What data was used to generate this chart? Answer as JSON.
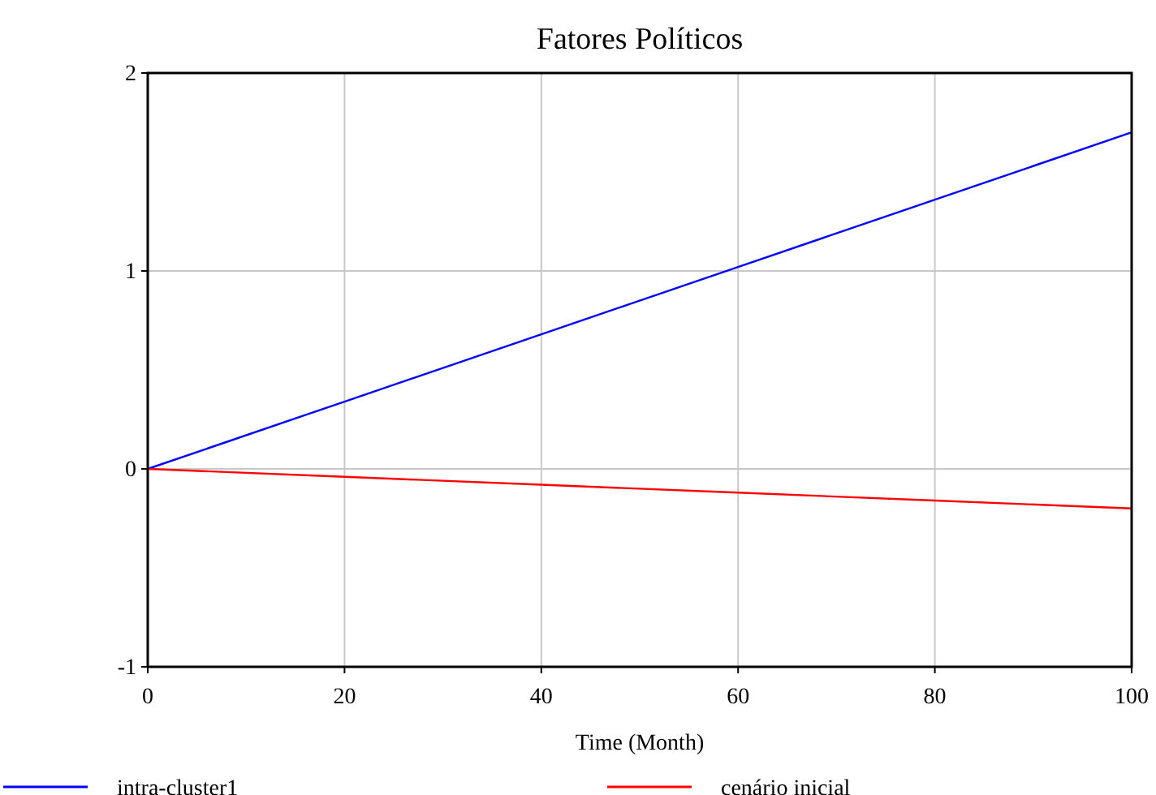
{
  "chart_data": {
    "type": "line",
    "title": "Fatores Políticos",
    "xlabel": "Time (Month)",
    "x": [
      0,
      20,
      40,
      60,
      80,
      100
    ],
    "series": [
      {
        "name": "intra-cluster1",
        "color": "#0000ff",
        "values": [
          0,
          0.34,
          0.68,
          1.02,
          1.36,
          1.7
        ]
      },
      {
        "name": "cenário inicial",
        "color": "#ff0000",
        "values": [
          0,
          -0.04,
          -0.08,
          -0.12,
          -0.16,
          -0.2
        ]
      }
    ],
    "xlim": [
      0,
      100
    ],
    "xticks": [
      0,
      20,
      40,
      60,
      80,
      100
    ],
    "ylim": [
      -1,
      2
    ],
    "yticks": [
      -1,
      0,
      1,
      2
    ],
    "grid": true,
    "legend": "bottom",
    "marker": "none",
    "line_style": "solid"
  }
}
